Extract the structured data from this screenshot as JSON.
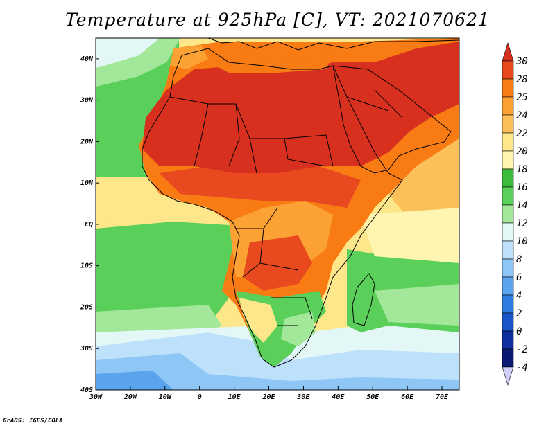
{
  "map": {
    "title": "Temperature at 925hPa [C], VT: 2021070621",
    "credit": "GrADS: IGES/COLA",
    "variable": "Temperature at 925hPa",
    "units": "C",
    "valid_time": "2021070621",
    "lon_range": [
      -30,
      75
    ],
    "lat_range": [
      -40,
      45
    ],
    "x_ticks": [
      {
        "value": -30,
        "label": "30W"
      },
      {
        "value": -20,
        "label": "20W"
      },
      {
        "value": -10,
        "label": "10W"
      },
      {
        "value": 0,
        "label": "0"
      },
      {
        "value": 10,
        "label": "10E"
      },
      {
        "value": 20,
        "label": "20E"
      },
      {
        "value": 30,
        "label": "30E"
      },
      {
        "value": 40,
        "label": "40E"
      },
      {
        "value": 50,
        "label": "50E"
      },
      {
        "value": 60,
        "label": "60E"
      },
      {
        "value": 70,
        "label": "70E"
      }
    ],
    "y_ticks": [
      {
        "value": 40,
        "label": "40N"
      },
      {
        "value": 30,
        "label": "30N"
      },
      {
        "value": 20,
        "label": "20N"
      },
      {
        "value": 10,
        "label": "10N"
      },
      {
        "value": 0,
        "label": "EQ"
      },
      {
        "value": -10,
        "label": "10S"
      },
      {
        "value": -20,
        "label": "20S"
      },
      {
        "value": -30,
        "label": "30S"
      },
      {
        "value": -40,
        "label": "40S"
      }
    ]
  },
  "colorbar": {
    "labels": [
      "30",
      "28",
      "25",
      "24",
      "22",
      "20",
      "18",
      "16",
      "14",
      "12",
      "10",
      "8",
      "6",
      "4",
      "2",
      "0",
      "-2",
      "-4"
    ],
    "colors": [
      "#d7301f",
      "#e8491e",
      "#f97b14",
      "#fca234",
      "#fcc05a",
      "#fde78a",
      "#fef5b0",
      "#3cbc3c",
      "#5ad05a",
      "#a3e89a",
      "#e4f7f7",
      "#bde0fb",
      "#8ec6f5",
      "#5aa4ee",
      "#2f7be0",
      "#1a55c8",
      "#0f2f9e",
      "#0a1a70",
      "#d0cdf8"
    ]
  }
}
